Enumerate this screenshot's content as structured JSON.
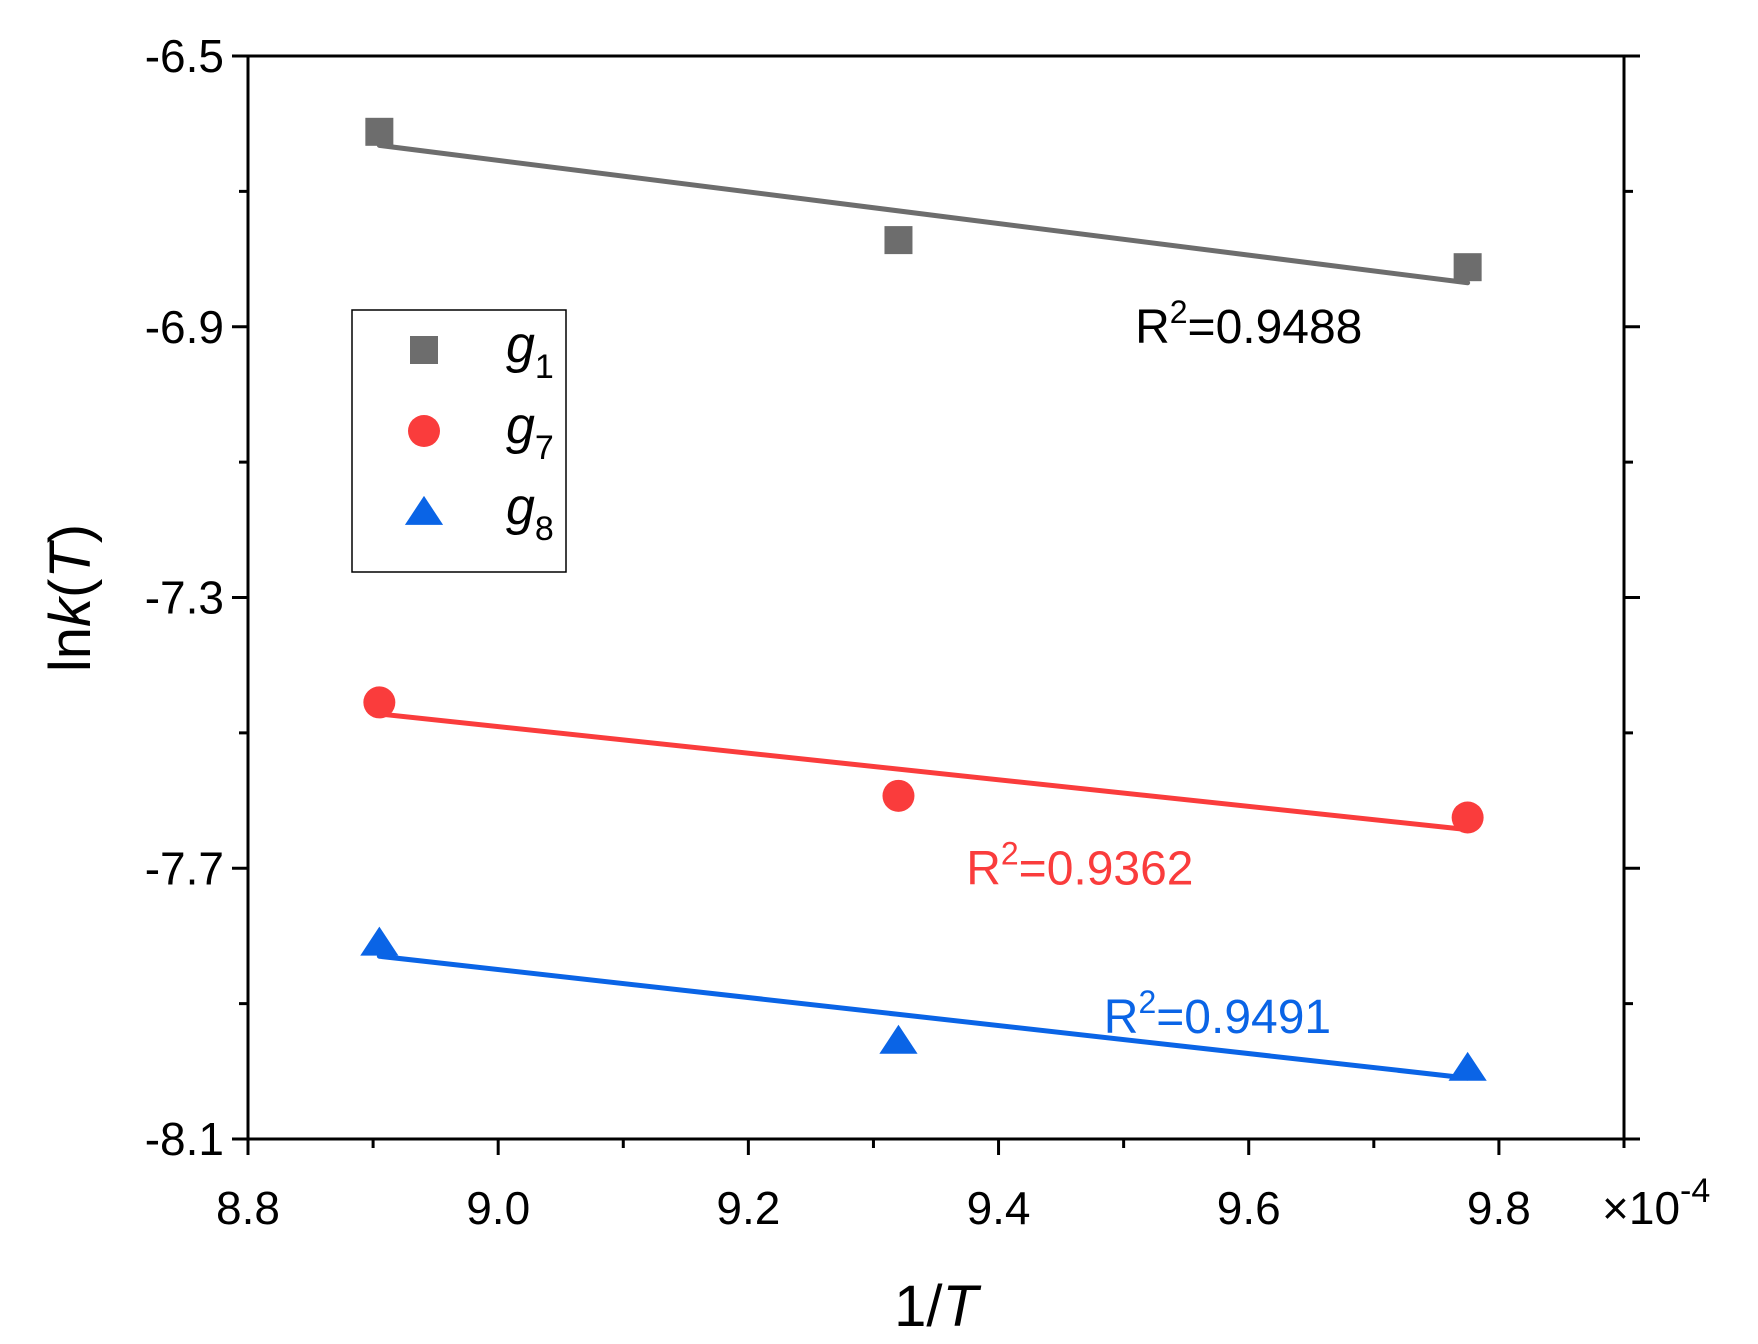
{
  "chart_data": {
    "type": "scatter",
    "title": "",
    "xlabel": {
      "prefix": "1/",
      "italic": "T"
    },
    "ylabel": {
      "prefix": "ln",
      "italic": "k",
      "suffix": "(",
      "italic2": "T",
      "end": ")"
    },
    "x_multiplier": {
      "symbol": "×",
      "base": "10",
      "exponent": "-4"
    },
    "xlim": [
      8.8,
      9.9
    ],
    "ylim": [
      -8.1,
      -6.5
    ],
    "xticks": [
      "8.8",
      "9.0",
      "9.2",
      "9.4",
      "9.6",
      "9.8"
    ],
    "yticks": [
      "-6.5",
      "-6.9",
      "-7.3",
      "-7.7",
      "-8.1"
    ],
    "legend_position": "upper-left",
    "series": [
      {
        "name": "g",
        "sub": "1",
        "color": "#6d6d6d",
        "marker": "square",
        "x": [
          8.905,
          9.32,
          9.775
        ],
        "y": [
          -6.612,
          -6.772,
          -6.812
        ],
        "fit": {
          "x": [
            8.905,
            9.775
          ],
          "y": [
            -6.632,
            -6.835
          ]
        },
        "r2": {
          "prefix": "R",
          "sup": "2",
          "value": "=0.9488",
          "color": "#000000",
          "at": [
            9.6,
            -6.9
          ]
        }
      },
      {
        "name": "g",
        "sub": "7",
        "color": "#fa3c3c",
        "marker": "circle",
        "x": [
          8.905,
          9.32,
          9.775
        ],
        "y": [
          -7.455,
          -7.593,
          -7.625
        ],
        "fit": {
          "x": [
            8.905,
            9.775
          ],
          "y": [
            -7.472,
            -7.643
          ]
        },
        "r2": {
          "prefix": "R",
          "sup": "2",
          "value": "=0.9362",
          "color": "#fa3c3c",
          "at": [
            9.465,
            -7.7
          ]
        }
      },
      {
        "name": "g",
        "sub": "8",
        "color": "#0a64e6",
        "marker": "triangle",
        "x": [
          8.905,
          9.32,
          9.775
        ],
        "y": [
          -7.81,
          -7.955,
          -7.995
        ],
        "fit": {
          "x": [
            8.905,
            9.775
          ],
          "y": [
            -7.83,
            -8.01
          ]
        },
        "r2": {
          "prefix": "R",
          "sup": "2",
          "value": "=0.9491",
          "color": "#0a64e6",
          "at": [
            9.575,
            -7.92
          ]
        }
      }
    ]
  }
}
